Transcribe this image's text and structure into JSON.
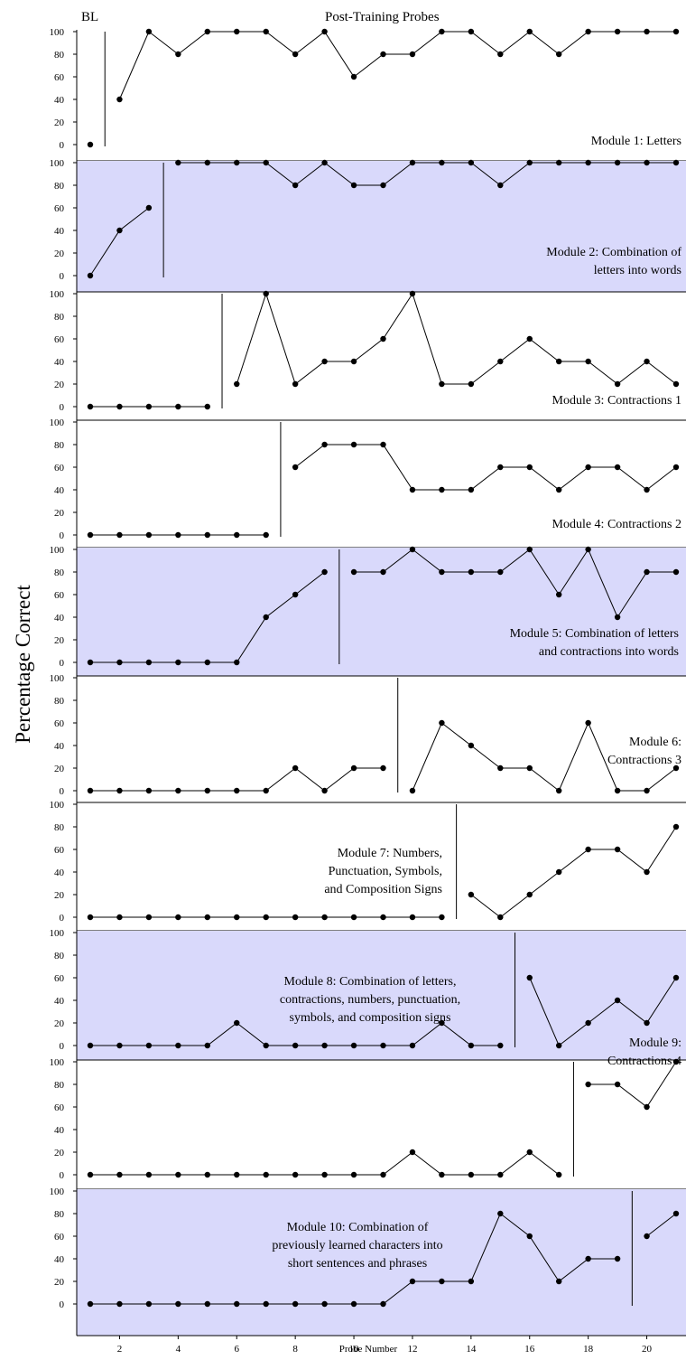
{
  "figure": {
    "ylabel": "Percentage Correct",
    "xlabel": "Probe Number",
    "baseline_label": "BL",
    "post_label": "Post-Training Probes",
    "shade_color": "#d9d9fb",
    "line_color": "#000000"
  },
  "chart_data": {
    "type": "line",
    "x_ticks": [
      2,
      4,
      6,
      8,
      10,
      12,
      14,
      16,
      18,
      20
    ],
    "y_ticks": [
      0,
      20,
      40,
      60,
      80,
      100
    ],
    "xlim": [
      1,
      21
    ],
    "ylim": [
      0,
      100
    ],
    "panels": [
      {
        "label": [
          "Module 1: Letters"
        ],
        "phase_change_after": 1,
        "shaded": false,
        "baseline": [
          [
            1,
            0
          ]
        ],
        "post": [
          [
            2,
            40
          ],
          [
            3,
            100
          ],
          [
            4,
            80
          ],
          [
            5,
            100
          ],
          [
            6,
            100
          ],
          [
            7,
            100
          ],
          [
            8,
            80
          ],
          [
            9,
            100
          ],
          [
            10,
            60
          ],
          [
            11,
            80
          ],
          [
            12,
            80
          ],
          [
            13,
            100
          ],
          [
            14,
            100
          ],
          [
            15,
            80
          ],
          [
            16,
            100
          ],
          [
            17,
            80
          ],
          [
            18,
            100
          ],
          [
            19,
            100
          ],
          [
            20,
            100
          ],
          [
            21,
            100
          ]
        ]
      },
      {
        "label": [
          "Module 2: Combination of",
          "letters into words"
        ],
        "phase_change_after": 3,
        "shaded": true,
        "baseline": [
          [
            1,
            0
          ],
          [
            2,
            40
          ],
          [
            3,
            60
          ]
        ],
        "post": [
          [
            4,
            100
          ],
          [
            5,
            100
          ],
          [
            6,
            100
          ],
          [
            7,
            100
          ],
          [
            8,
            80
          ],
          [
            9,
            100
          ],
          [
            10,
            80
          ],
          [
            11,
            80
          ],
          [
            12,
            100
          ],
          [
            13,
            100
          ],
          [
            14,
            100
          ],
          [
            15,
            80
          ],
          [
            16,
            100
          ],
          [
            17,
            100
          ],
          [
            18,
            100
          ],
          [
            19,
            100
          ],
          [
            20,
            100
          ],
          [
            21,
            100
          ]
        ]
      },
      {
        "label": [
          "Module 3: Contractions 1"
        ],
        "phase_change_after": 5,
        "shaded": false,
        "baseline": [
          [
            1,
            0
          ],
          [
            2,
            0
          ],
          [
            3,
            0
          ],
          [
            4,
            0
          ],
          [
            5,
            0
          ]
        ],
        "post": [
          [
            6,
            20
          ],
          [
            7,
            100
          ],
          [
            8,
            20
          ],
          [
            9,
            40
          ],
          [
            10,
            40
          ],
          [
            11,
            60
          ],
          [
            12,
            100
          ],
          [
            13,
            20
          ],
          [
            14,
            20
          ],
          [
            15,
            40
          ],
          [
            16,
            60
          ],
          [
            17,
            40
          ],
          [
            18,
            40
          ],
          [
            19,
            20
          ],
          [
            20,
            40
          ],
          [
            21,
            20
          ]
        ]
      },
      {
        "label": [
          "Module 4: Contractions 2"
        ],
        "phase_change_after": 7,
        "shaded": false,
        "baseline": [
          [
            1,
            0
          ],
          [
            2,
            0
          ],
          [
            3,
            0
          ],
          [
            4,
            0
          ],
          [
            5,
            0
          ],
          [
            6,
            0
          ],
          [
            7,
            0
          ]
        ],
        "post": [
          [
            8,
            60
          ],
          [
            9,
            80
          ],
          [
            10,
            80
          ],
          [
            11,
            80
          ],
          [
            12,
            40
          ],
          [
            13,
            40
          ],
          [
            14,
            40
          ],
          [
            15,
            60
          ],
          [
            16,
            60
          ],
          [
            17,
            40
          ],
          [
            18,
            60
          ],
          [
            19,
            60
          ],
          [
            20,
            40
          ],
          [
            21,
            60
          ]
        ]
      },
      {
        "label": [
          "Module 5: Combination of letters",
          "and contractions into words"
        ],
        "phase_change_after": 9,
        "shaded": true,
        "baseline": [
          [
            1,
            0
          ],
          [
            2,
            0
          ],
          [
            3,
            0
          ],
          [
            4,
            0
          ],
          [
            5,
            0
          ],
          [
            6,
            0
          ],
          [
            7,
            40
          ],
          [
            8,
            60
          ],
          [
            9,
            80
          ]
        ],
        "post": [
          [
            10,
            80
          ],
          [
            11,
            80
          ],
          [
            12,
            100
          ],
          [
            13,
            80
          ],
          [
            14,
            80
          ],
          [
            15,
            80
          ],
          [
            16,
            100
          ],
          [
            17,
            60
          ],
          [
            18,
            100
          ],
          [
            19,
            40
          ],
          [
            20,
            80
          ],
          [
            21,
            80
          ]
        ]
      },
      {
        "label": [
          "Module 6:",
          "Contractions 3"
        ],
        "phase_change_after": 11,
        "shaded": false,
        "baseline": [
          [
            1,
            0
          ],
          [
            2,
            0
          ],
          [
            3,
            0
          ],
          [
            4,
            0
          ],
          [
            5,
            0
          ],
          [
            6,
            0
          ],
          [
            7,
            0
          ],
          [
            8,
            20
          ],
          [
            9,
            0
          ],
          [
            10,
            20
          ],
          [
            11,
            20
          ]
        ],
        "post": [
          [
            12,
            0
          ],
          [
            13,
            60
          ],
          [
            14,
            40
          ],
          [
            15,
            20
          ],
          [
            16,
            20
          ],
          [
            17,
            0
          ],
          [
            18,
            60
          ],
          [
            19,
            0
          ],
          [
            20,
            0
          ],
          [
            21,
            20
          ]
        ]
      },
      {
        "label": [
          "Module 7: Numbers,",
          "Punctuation, Symbols,",
          "and Composition Signs"
        ],
        "phase_change_after": 13,
        "shaded": false,
        "baseline": [
          [
            1,
            0
          ],
          [
            2,
            0
          ],
          [
            3,
            0
          ],
          [
            4,
            0
          ],
          [
            5,
            0
          ],
          [
            6,
            0
          ],
          [
            7,
            0
          ],
          [
            8,
            0
          ],
          [
            9,
            0
          ],
          [
            10,
            0
          ],
          [
            11,
            0
          ],
          [
            12,
            0
          ],
          [
            13,
            0
          ]
        ],
        "post": [
          [
            14,
            20
          ],
          [
            15,
            0
          ],
          [
            16,
            20
          ],
          [
            17,
            40
          ],
          [
            18,
            60
          ],
          [
            19,
            60
          ],
          [
            20,
            40
          ],
          [
            21,
            80
          ]
        ]
      },
      {
        "label": [
          "Module 8: Combination of letters,",
          "contractions, numbers, punctuation,",
          "symbols, and composition signs"
        ],
        "phase_change_after": 15,
        "shaded": true,
        "baseline": [
          [
            1,
            0
          ],
          [
            2,
            0
          ],
          [
            3,
            0
          ],
          [
            4,
            0
          ],
          [
            5,
            0
          ],
          [
            6,
            20
          ],
          [
            7,
            0
          ],
          [
            8,
            0
          ],
          [
            9,
            0
          ],
          [
            10,
            0
          ],
          [
            11,
            0
          ],
          [
            12,
            0
          ],
          [
            13,
            20
          ],
          [
            14,
            0
          ],
          [
            15,
            0
          ]
        ],
        "post": [
          [
            16,
            60
          ],
          [
            17,
            0
          ],
          [
            18,
            20
          ],
          [
            19,
            40
          ],
          [
            20,
            20
          ],
          [
            21,
            60
          ]
        ]
      },
      {
        "label": [
          "Module 9:",
          "Contractions 4"
        ],
        "phase_change_after": 17,
        "shaded": false,
        "baseline": [
          [
            1,
            0
          ],
          [
            2,
            0
          ],
          [
            3,
            0
          ],
          [
            4,
            0
          ],
          [
            5,
            0
          ],
          [
            6,
            0
          ],
          [
            7,
            0
          ],
          [
            8,
            0
          ],
          [
            9,
            0
          ],
          [
            10,
            0
          ],
          [
            11,
            0
          ],
          [
            12,
            20
          ],
          [
            13,
            0
          ],
          [
            14,
            0
          ],
          [
            15,
            0
          ],
          [
            16,
            20
          ],
          [
            17,
            0
          ]
        ],
        "post": [
          [
            18,
            80
          ],
          [
            19,
            80
          ],
          [
            20,
            60
          ],
          [
            21,
            100
          ]
        ]
      },
      {
        "label": [
          "Module 10: Combination of",
          "previously learned characters into",
          "short sentences and phrases"
        ],
        "phase_change_after": 19,
        "shaded": true,
        "baseline": [
          [
            1,
            0
          ],
          [
            2,
            0
          ],
          [
            3,
            0
          ],
          [
            4,
            0
          ],
          [
            5,
            0
          ],
          [
            6,
            0
          ],
          [
            7,
            0
          ],
          [
            8,
            0
          ],
          [
            9,
            0
          ],
          [
            10,
            0
          ],
          [
            11,
            0
          ],
          [
            12,
            20
          ],
          [
            13,
            20
          ],
          [
            14,
            20
          ],
          [
            15,
            80
          ],
          [
            16,
            60
          ],
          [
            17,
            20
          ],
          [
            18,
            40
          ],
          [
            19,
            40
          ]
        ],
        "post": [
          [
            20,
            60
          ],
          [
            21,
            80
          ]
        ]
      }
    ]
  }
}
